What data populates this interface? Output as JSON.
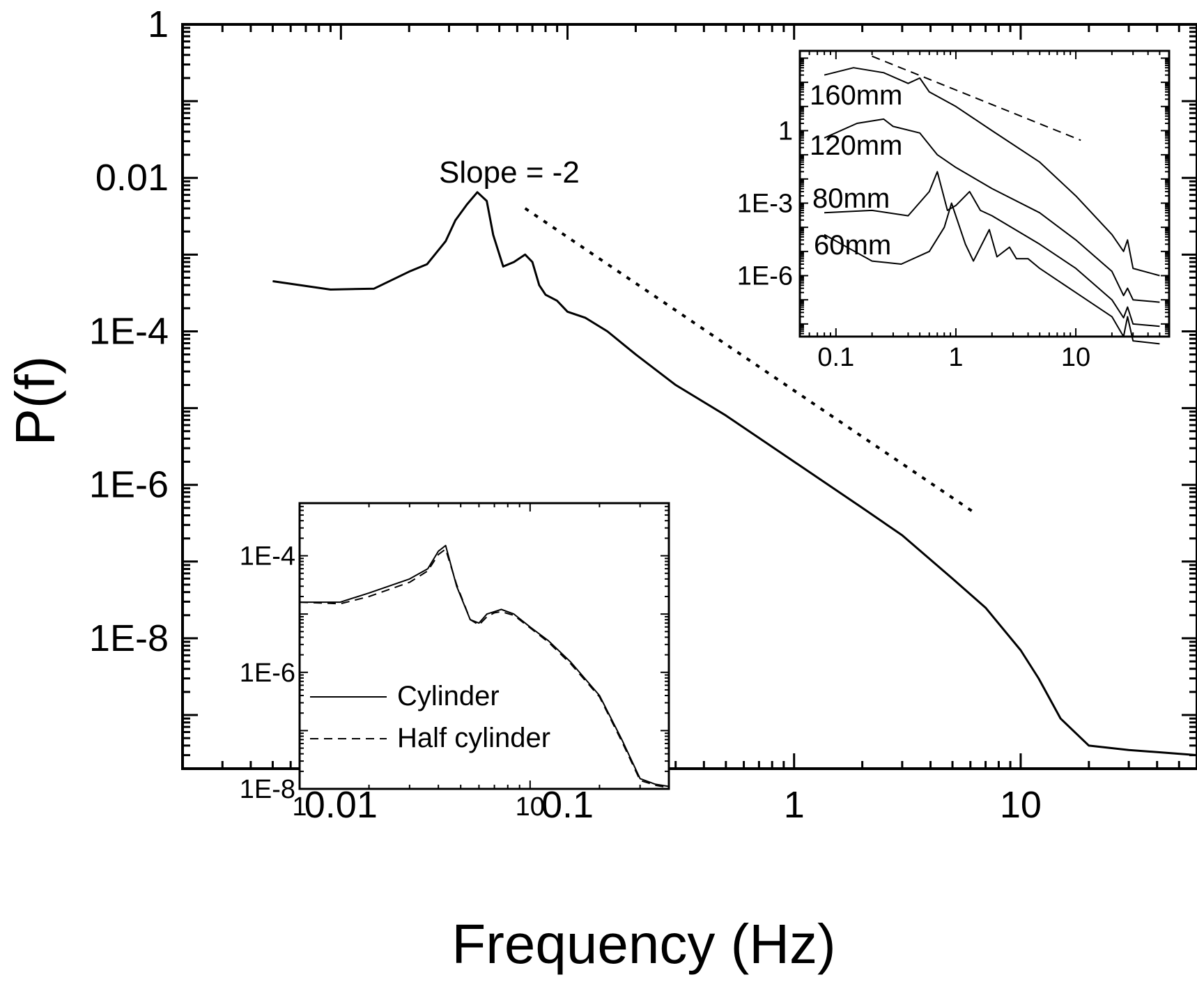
{
  "chart_data": [
    {
      "type": "line",
      "xlabel": "Frequency (Hz)",
      "ylabel": "P(f)",
      "x_scale": "log",
      "y_scale": "log",
      "xlim": [
        0.002,
        60
      ],
      "ylim": [
        2e-10,
        1
      ],
      "x_ticks": [
        {
          "value": 0.01,
          "label": "0.01"
        },
        {
          "value": 0.1,
          "label": "0.1"
        },
        {
          "value": 1,
          "label": "1"
        },
        {
          "value": 10,
          "label": "10"
        }
      ],
      "y_ticks": [
        {
          "value": 1,
          "label": "1"
        },
        {
          "value": 0.01,
          "label": "0.01"
        },
        {
          "value": 0.0001,
          "label": "1E-4"
        },
        {
          "value": 1e-06,
          "label": "1E-6"
        },
        {
          "value": 1e-08,
          "label": "1E-8"
        }
      ],
      "annotations": [
        {
          "text": "Slope = -2"
        }
      ],
      "series": [
        {
          "style": "solid",
          "x": [
            0.005,
            0.009,
            0.014,
            0.02,
            0.024,
            0.029,
            0.032,
            0.036,
            0.04,
            0.044,
            0.047,
            0.052,
            0.058,
            0.065,
            0.07,
            0.075,
            0.08,
            0.09,
            0.1,
            0.12,
            0.15,
            0.2,
            0.3,
            0.5,
            1,
            2,
            3,
            5,
            7,
            10,
            12,
            15,
            20,
            30,
            45,
            60
          ],
          "y": [
            0.00045,
            0.00035,
            0.00036,
            0.0006,
            0.00075,
            0.0015,
            0.0028,
            0.0045,
            0.0065,
            0.005,
            0.0018,
            0.0007,
            0.0008,
            0.001,
            0.0008,
            0.0004,
            0.0003,
            0.00025,
            0.00018,
            0.00015,
            0.0001,
            5e-05,
            2e-05,
            8e-06,
            2e-06,
            5e-07,
            2.2e-07,
            6e-08,
            2.5e-08,
            7e-09,
            3e-09,
            9e-10,
            4e-10,
            3.5e-10,
            3.2e-10,
            3e-10
          ]
        },
        {
          "style": "dotted",
          "x": [
            0.065,
            6.2
          ],
          "y": [
            0.004,
            4.4e-07
          ]
        }
      ]
    },
    {
      "type": "line",
      "x_scale": "log",
      "y_scale": "log",
      "xlim": [
        0.05,
        60
      ],
      "ylim": [
        3e-09,
        2000
      ],
      "x_ticks": [
        {
          "value": 0.1,
          "label": "0.1"
        },
        {
          "value": 1,
          "label": "1"
        },
        {
          "value": 10,
          "label": "10"
        }
      ],
      "y_ticks": [
        {
          "value": 1,
          "label": "1"
        },
        {
          "value": 0.001,
          "label": "1E-3"
        },
        {
          "value": 1e-06,
          "label": "1E-6"
        }
      ],
      "series": [
        {
          "name": "160mm",
          "style": "solid",
          "x": [
            0.08,
            0.14,
            0.25,
            0.4,
            0.5,
            0.6,
            1,
            2,
            5,
            10,
            20,
            25,
            27,
            30,
            50
          ],
          "y": [
            200,
            400,
            250,
            90,
            150,
            40,
            10,
            1,
            0.05,
            0.002,
            5e-05,
            1e-05,
            3e-05,
            2e-06,
            1e-06
          ]
        },
        {
          "name": "120mm",
          "style": "solid",
          "x": [
            0.08,
            0.15,
            0.25,
            0.3,
            0.5,
            0.7,
            1,
            2,
            5,
            10,
            20,
            25,
            27,
            30,
            50
          ],
          "y": [
            0.5,
            2,
            3,
            1.5,
            0.8,
            0.1,
            0.03,
            0.004,
            0.0004,
            3e-05,
            1.5e-06,
            1.5e-07,
            3e-07,
            1e-07,
            8e-08
          ]
        },
        {
          "name": "80mm",
          "style": "solid",
          "x": [
            0.08,
            0.2,
            0.4,
            0.6,
            0.7,
            0.85,
            1,
            1.3,
            1.6,
            2,
            5,
            10,
            20,
            25,
            27,
            30,
            50
          ],
          "y": [
            0.0004,
            0.0005,
            0.0003,
            0.003,
            0.02,
            0.0005,
            0.0008,
            0.003,
            0.0005,
            0.0003,
            2e-05,
            2e-06,
            1e-07,
            1.8e-08,
            5e-08,
            1e-08,
            8e-09
          ]
        },
        {
          "name": "60mm",
          "style": "solid",
          "x": [
            0.08,
            0.2,
            0.35,
            0.6,
            0.8,
            0.92,
            1.2,
            1.4,
            1.9,
            2.2,
            2.8,
            3.2,
            4,
            5,
            10,
            20,
            25,
            27,
            30,
            50
          ],
          "y": [
            5e-05,
            4e-06,
            3e-06,
            1e-05,
            0.0001,
            0.001,
            2e-05,
            4e-06,
            8e-05,
            6e-06,
            1.5e-05,
            5e-06,
            5e-06,
            2e-06,
            2e-07,
            2e-08,
            3e-09,
            2e-08,
            2e-09,
            1.5e-09
          ]
        },
        {
          "style": "dashed",
          "x": [
            0.2,
            11
          ],
          "y": [
            1200,
            0.4
          ]
        }
      ]
    },
    {
      "type": "line",
      "x_scale": "log",
      "y_scale": "log",
      "xlim": [
        1,
        40
      ],
      "ylim": [
        1e-08,
        0.0008
      ],
      "x_ticks": [
        {
          "value": 1,
          "label": "1"
        },
        {
          "value": 10,
          "label": "10"
        }
      ],
      "y_ticks": [
        {
          "value": 0.0001,
          "label": "1E-4"
        },
        {
          "value": 1e-06,
          "label": "1E-6"
        },
        {
          "value": 1e-08,
          "label": "1E-8"
        }
      ],
      "legend": {
        "position": "bottom-left"
      },
      "series": [
        {
          "name": "Cylinder",
          "style": "solid",
          "x": [
            1,
            1.5,
            2,
            3,
            3.6,
            4,
            4.3,
            4.8,
            5.5,
            6,
            6.5,
            7,
            7.5,
            8.5,
            10,
            12,
            15,
            20,
            25,
            30,
            35,
            40
          ],
          "y": [
            1.6e-05,
            1.6e-05,
            2.3e-05,
            4e-05,
            6e-05,
            0.00012,
            0.00015,
            3e-05,
            8e-06,
            7e-06,
            1e-05,
            1.1e-05,
            1.2e-05,
            1e-05,
            6e-06,
            3.5e-06,
            1.5e-06,
            4e-07,
            7e-08,
            1.5e-08,
            1.2e-08,
            1.1e-08
          ]
        },
        {
          "name": "Half cylinder",
          "style": "dashed",
          "x": [
            1,
            1.5,
            2,
            3,
            3.6,
            4,
            4.3,
            4.8,
            5.5,
            6,
            6.5,
            7,
            7.5,
            8.5,
            10,
            12,
            15,
            20,
            25,
            30,
            35,
            40
          ],
          "y": [
            1.6e-05,
            1.5e-05,
            2e-05,
            3.5e-05,
            5.5e-05,
            0.000105,
            0.00013,
            3.2e-05,
            8e-06,
            6.5e-06,
            9e-06,
            1.05e-05,
            1.1e-05,
            9.5e-06,
            5.8e-06,
            3.3e-06,
            1.4e-06,
            3.8e-07,
            6.5e-08,
            1.4e-08,
            1.15e-08,
            1.05e-08
          ]
        }
      ]
    }
  ]
}
